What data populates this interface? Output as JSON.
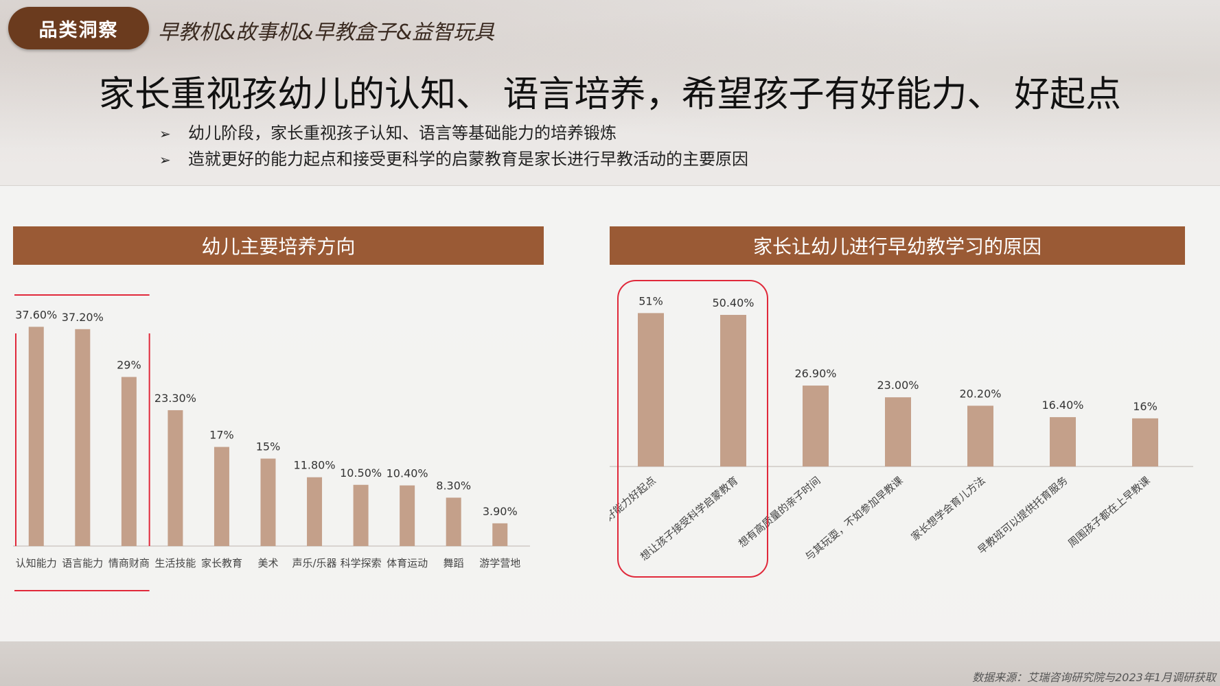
{
  "header": {
    "tag": "品类洞察",
    "subtitle": "早教机&故事机&早教盒子&益智玩具",
    "title": "家长重视孩幼儿的认知、 语言培养，希望孩子有好能力、 好起点",
    "bullets": [
      "幼儿阶段，家长重视孩子认知、语言等基础能力的培养锻炼",
      "造就更好的能力起点和接受更科学的启蒙教育是家长进行早教活动的主要原因"
    ],
    "bullet_icon": "arrowhead-icon"
  },
  "colors": {
    "bar": "#c4a08a",
    "header_bg": "#9a5a35",
    "tag_bg": "#6b3b1e",
    "highlight": "#e0283a"
  },
  "chart_data": [
    {
      "type": "bar",
      "title": "幼儿主要培养方向",
      "categories": [
        "认知能力",
        "语言能力",
        "情商财商",
        "生活技能",
        "家长教育",
        "美术",
        "声乐/乐器",
        "科学探索",
        "体育运动",
        "舞蹈",
        "游学营地"
      ],
      "values": [
        37.6,
        37.2,
        29,
        23.3,
        17,
        15,
        11.8,
        10.5,
        10.4,
        8.3,
        3.9
      ],
      "labels": [
        "37.60%",
        "37.20%",
        "29%",
        "23.30%",
        "17%",
        "15%",
        "11.80%",
        "10.50%",
        "10.40%",
        "8.30%",
        "3.90%"
      ],
      "ylim": [
        0,
        40
      ],
      "highlighted": [
        0,
        1,
        2
      ]
    },
    {
      "type": "bar",
      "title": "家长让幼儿进行早幼教学习的原因",
      "categories": [
        "希望孩子有好能力好起点",
        "想让孩子接受科学启蒙教育",
        "想有高质量的亲子时间",
        "与其玩耍，不如参加早教课",
        "家长想学会育儿方法",
        "早教班可以提供托育服务",
        "周围孩子都在上早教课"
      ],
      "values": [
        51,
        50.4,
        26.9,
        23.0,
        20.2,
        16.4,
        16
      ],
      "labels": [
        "51%",
        "50.40%",
        "26.90%",
        "23.00%",
        "20.20%",
        "16.40%",
        "16%"
      ],
      "ylim": [
        0,
        52
      ],
      "highlighted": [
        0,
        1
      ]
    }
  ],
  "footer": {
    "source": "数据来源：艾瑞咨询研究院与2023年1月调研获取"
  }
}
